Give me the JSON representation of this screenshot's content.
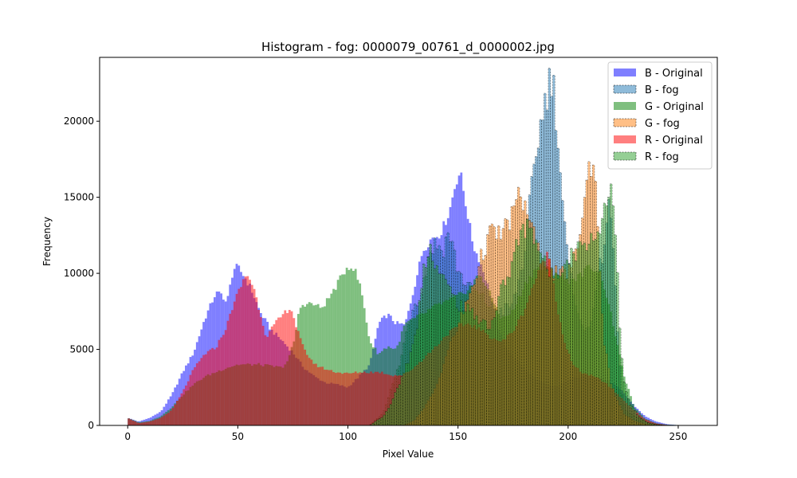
{
  "chart_data": {
    "type": "histogram",
    "title": "Histogram - fog: 0000079_00761_d_0000002.jpg",
    "xlabel": "Pixel Value",
    "ylabel": "Frequency",
    "xlim": [
      -12.75,
      267.75
    ],
    "ylim": [
      0,
      24200
    ],
    "xticks": [
      "0",
      "50",
      "100",
      "150",
      "200",
      "250"
    ],
    "yticks": [
      "0",
      "5000",
      "10000",
      "15000",
      "20000"
    ],
    "bin_width": 1,
    "legend_position": "top-right",
    "series": [
      {
        "name": "B - Original",
        "color": "#0000ff",
        "alpha": 0.5,
        "style": "solid",
        "points": [
          [
            0,
            500
          ],
          [
            5,
            250
          ],
          [
            10,
            500
          ],
          [
            15,
            900
          ],
          [
            20,
            2000
          ],
          [
            25,
            3500
          ],
          [
            30,
            4800
          ],
          [
            35,
            7000
          ],
          [
            40,
            8700
          ],
          [
            43,
            8600
          ],
          [
            45,
            8000
          ],
          [
            48,
            10300
          ],
          [
            50,
            10400
          ],
          [
            53,
            9800
          ],
          [
            56,
            9000
          ],
          [
            60,
            7500
          ],
          [
            65,
            6300
          ],
          [
            70,
            5600
          ],
          [
            75,
            4800
          ],
          [
            80,
            3800
          ],
          [
            85,
            3200
          ],
          [
            90,
            2800
          ],
          [
            95,
            2700
          ],
          [
            100,
            2500
          ],
          [
            105,
            3200
          ],
          [
            110,
            4000
          ],
          [
            114,
            6700
          ],
          [
            118,
            7300
          ],
          [
            122,
            6700
          ],
          [
            126,
            6600
          ],
          [
            130,
            9000
          ],
          [
            134,
            11500
          ],
          [
            138,
            12300
          ],
          [
            142,
            12600
          ],
          [
            146,
            14000
          ],
          [
            149,
            16000
          ],
          [
            151,
            16700
          ],
          [
            154,
            14200
          ],
          [
            157,
            11800
          ],
          [
            160,
            10800
          ],
          [
            163,
            9500
          ],
          [
            166,
            7800
          ],
          [
            170,
            5600
          ],
          [
            175,
            4500
          ],
          [
            180,
            3800
          ],
          [
            185,
            3100
          ],
          [
            190,
            2700
          ],
          [
            195,
            2500
          ],
          [
            200,
            3000
          ],
          [
            205,
            3200
          ],
          [
            210,
            3300
          ],
          [
            215,
            3100
          ],
          [
            220,
            2800
          ],
          [
            225,
            2200
          ],
          [
            230,
            1300
          ],
          [
            235,
            600
          ],
          [
            240,
            250
          ],
          [
            245,
            80
          ],
          [
            250,
            20
          ],
          [
            256,
            0
          ]
        ]
      },
      {
        "name": "B - fog",
        "color": "#1f77b4",
        "alpha": 0.5,
        "style": "dashed",
        "points": [
          [
            0,
            0
          ],
          [
            110,
            0
          ],
          [
            116,
            800
          ],
          [
            120,
            2500
          ],
          [
            124,
            4200
          ],
          [
            127,
            6500
          ],
          [
            130,
            8000
          ],
          [
            133,
            8600
          ],
          [
            135,
            9800
          ],
          [
            137,
            11500
          ],
          [
            140,
            12000
          ],
          [
            143,
            11500
          ],
          [
            146,
            12800
          ],
          [
            150,
            10200
          ],
          [
            155,
            9000
          ],
          [
            160,
            8500
          ],
          [
            165,
            7800
          ],
          [
            170,
            7500
          ],
          [
            175,
            8000
          ],
          [
            180,
            11000
          ],
          [
            183,
            15000
          ],
          [
            186,
            18500
          ],
          [
            189,
            21000
          ],
          [
            191,
            22400
          ],
          [
            193,
            23000
          ],
          [
            195,
            19800
          ],
          [
            197,
            15700
          ],
          [
            199,
            12000
          ],
          [
            201,
            9800
          ],
          [
            204,
            8000
          ],
          [
            207,
            6000
          ],
          [
            210,
            6800
          ],
          [
            213,
            9200
          ],
          [
            216,
            11600
          ],
          [
            218,
            14300
          ],
          [
            220,
            13200
          ],
          [
            222,
            7500
          ],
          [
            224,
            2500
          ],
          [
            226,
            1000
          ],
          [
            230,
            600
          ],
          [
            235,
            250
          ],
          [
            240,
            60
          ],
          [
            245,
            0
          ],
          [
            256,
            0
          ]
        ]
      },
      {
        "name": "G - Original",
        "color": "#008000",
        "alpha": 0.5,
        "style": "solid",
        "points": [
          [
            0,
            500
          ],
          [
            5,
            200
          ],
          [
            10,
            300
          ],
          [
            15,
            600
          ],
          [
            20,
            1200
          ],
          [
            25,
            2000
          ],
          [
            30,
            2700
          ],
          [
            35,
            3200
          ],
          [
            40,
            3500
          ],
          [
            45,
            3800
          ],
          [
            50,
            4000
          ],
          [
            55,
            4000
          ],
          [
            60,
            4000
          ],
          [
            65,
            3900
          ],
          [
            70,
            3800
          ],
          [
            73,
            4300
          ],
          [
            76,
            5800
          ],
          [
            78,
            7700
          ],
          [
            80,
            8000
          ],
          [
            84,
            8000
          ],
          [
            88,
            7700
          ],
          [
            92,
            8500
          ],
          [
            96,
            9500
          ],
          [
            100,
            10500
          ],
          [
            103,
            10300
          ],
          [
            106,
            9000
          ],
          [
            110,
            5500
          ],
          [
            114,
            4700
          ],
          [
            118,
            5200
          ],
          [
            122,
            5000
          ],
          [
            126,
            6700
          ],
          [
            130,
            7000
          ],
          [
            134,
            7300
          ],
          [
            138,
            7700
          ],
          [
            142,
            8000
          ],
          [
            146,
            8200
          ],
          [
            150,
            8500
          ],
          [
            155,
            9000
          ],
          [
            160,
            10000
          ],
          [
            165,
            8500
          ],
          [
            170,
            7000
          ],
          [
            175,
            7500
          ],
          [
            180,
            9200
          ],
          [
            185,
            10300
          ],
          [
            190,
            10300
          ],
          [
            195,
            10000
          ],
          [
            200,
            9500
          ],
          [
            205,
            9800
          ],
          [
            210,
            10500
          ],
          [
            215,
            10000
          ],
          [
            220,
            7000
          ],
          [
            225,
            3500
          ],
          [
            230,
            1200
          ],
          [
            235,
            450
          ],
          [
            240,
            150
          ],
          [
            245,
            50
          ],
          [
            256,
            0
          ]
        ]
      },
      {
        "name": "G - fog",
        "color": "#ff7f0e",
        "alpha": 0.5,
        "style": "dashed",
        "points": [
          [
            0,
            0
          ],
          [
            125,
            0
          ],
          [
            130,
            300
          ],
          [
            135,
            1200
          ],
          [
            140,
            2500
          ],
          [
            145,
            4800
          ],
          [
            150,
            6500
          ],
          [
            155,
            8500
          ],
          [
            158,
            9800
          ],
          [
            161,
            11200
          ],
          [
            164,
            12500
          ],
          [
            167,
            12700
          ],
          [
            170,
            12500
          ],
          [
            174,
            13700
          ],
          [
            177,
            14800
          ],
          [
            179,
            15000
          ],
          [
            181,
            14200
          ],
          [
            183,
            13500
          ],
          [
            185,
            12000
          ],
          [
            188,
            11000
          ],
          [
            190,
            10800
          ],
          [
            193,
            10200
          ],
          [
            196,
            9700
          ],
          [
            200,
            10200
          ],
          [
            203,
            11000
          ],
          [
            206,
            13200
          ],
          [
            208,
            15300
          ],
          [
            210,
            17500
          ],
          [
            212,
            17000
          ],
          [
            214,
            12000
          ],
          [
            216,
            6000
          ],
          [
            218,
            4000
          ],
          [
            220,
            2500
          ],
          [
            225,
            800
          ],
          [
            230,
            300
          ],
          [
            235,
            80
          ],
          [
            240,
            0
          ],
          [
            256,
            0
          ]
        ]
      },
      {
        "name": "R - Original",
        "color": "#ff0000",
        "alpha": 0.5,
        "style": "solid",
        "points": [
          [
            0,
            500
          ],
          [
            5,
            150
          ],
          [
            10,
            250
          ],
          [
            15,
            500
          ],
          [
            20,
            1000
          ],
          [
            25,
            2200
          ],
          [
            30,
            3700
          ],
          [
            35,
            4700
          ],
          [
            40,
            5100
          ],
          [
            45,
            6500
          ],
          [
            48,
            8000
          ],
          [
            51,
            9000
          ],
          [
            54,
            10000
          ],
          [
            57,
            9200
          ],
          [
            60,
            7500
          ],
          [
            63,
            5800
          ],
          [
            66,
            6500
          ],
          [
            70,
            7200
          ],
          [
            74,
            7800
          ],
          [
            77,
            6300
          ],
          [
            80,
            5000
          ],
          [
            85,
            4000
          ],
          [
            90,
            3700
          ],
          [
            95,
            3500
          ],
          [
            100,
            3400
          ],
          [
            105,
            3500
          ],
          [
            110,
            3500
          ],
          [
            115,
            3500
          ],
          [
            120,
            3300
          ],
          [
            125,
            3300
          ],
          [
            130,
            3800
          ],
          [
            135,
            4500
          ],
          [
            140,
            5200
          ],
          [
            145,
            6000
          ],
          [
            150,
            6500
          ],
          [
            155,
            6700
          ],
          [
            160,
            6300
          ],
          [
            165,
            5800
          ],
          [
            170,
            5500
          ],
          [
            175,
            6200
          ],
          [
            180,
            7500
          ],
          [
            184,
            9200
          ],
          [
            187,
            10200
          ],
          [
            189,
            11000
          ],
          [
            191,
            11300
          ],
          [
            193,
            10000
          ],
          [
            195,
            7800
          ],
          [
            198,
            5700
          ],
          [
            202,
            4000
          ],
          [
            206,
            3500
          ],
          [
            210,
            3300
          ],
          [
            215,
            3000
          ],
          [
            220,
            2400
          ],
          [
            225,
            1700
          ],
          [
            230,
            1000
          ],
          [
            235,
            400
          ],
          [
            240,
            120
          ],
          [
            245,
            30
          ],
          [
            256,
            0
          ]
        ]
      },
      {
        "name": "R - fog",
        "color": "#2ca02c",
        "alpha": 0.5,
        "style": "dashed",
        "points": [
          [
            0,
            0
          ],
          [
            110,
            0
          ],
          [
            116,
            600
          ],
          [
            120,
            1500
          ],
          [
            124,
            3000
          ],
          [
            128,
            4500
          ],
          [
            131,
            6000
          ],
          [
            134,
            10000
          ],
          [
            137,
            12000
          ],
          [
            140,
            10500
          ],
          [
            145,
            9200
          ],
          [
            150,
            8000
          ],
          [
            155,
            7500
          ],
          [
            160,
            7000
          ],
          [
            165,
            6500
          ],
          [
            168,
            8000
          ],
          [
            170,
            9200
          ],
          [
            173,
            9800
          ],
          [
            176,
            11500
          ],
          [
            179,
            12700
          ],
          [
            182,
            13200
          ],
          [
            184,
            12800
          ],
          [
            186,
            12000
          ],
          [
            189,
            10800
          ],
          [
            192,
            9800
          ],
          [
            195,
            10000
          ],
          [
            198,
            10800
          ],
          [
            201,
            11200
          ],
          [
            204,
            11500
          ],
          [
            207,
            12000
          ],
          [
            210,
            12300
          ],
          [
            213,
            12500
          ],
          [
            215,
            13000
          ],
          [
            217,
            15000
          ],
          [
            219,
            16000
          ],
          [
            221,
            14500
          ],
          [
            223,
            8000
          ],
          [
            225,
            3000
          ],
          [
            228,
            1500
          ],
          [
            232,
            600
          ],
          [
            236,
            200
          ],
          [
            240,
            60
          ],
          [
            245,
            0
          ],
          [
            256,
            0
          ]
        ]
      }
    ]
  }
}
